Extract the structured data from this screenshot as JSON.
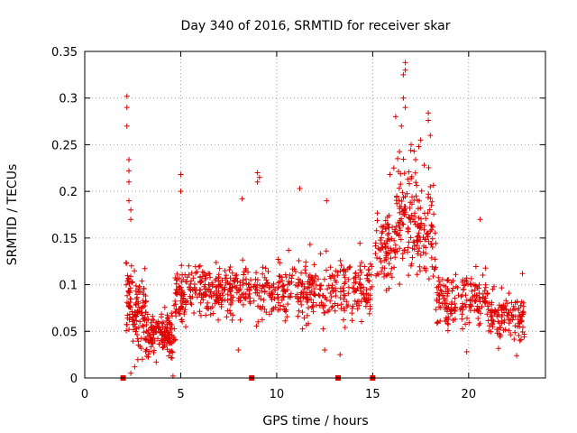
{
  "chart_data": {
    "type": "scatter",
    "title": "Day 340 of 2016, SRMTID for receiver skar",
    "xlabel": "GPS time / hours",
    "ylabel": "SRMTID / TECUs",
    "xlim": [
      0,
      24
    ],
    "ylim": [
      0,
      0.35
    ],
    "x_ticks": [
      0,
      5,
      10,
      15,
      20
    ],
    "x_tick_labels": [
      "0",
      "5",
      "10",
      "15",
      "20"
    ],
    "y_ticks": [
      0,
      0.05,
      0.1,
      0.15,
      0.2,
      0.25,
      0.3,
      0.35
    ],
    "y_tick_labels": [
      "0",
      "0.05",
      "0.1",
      "0.15",
      "0.2",
      "0.25",
      "0.3",
      "0.35"
    ],
    "grid": true,
    "marker_color": "#e00000",
    "marker": "plus",
    "data_gaps_at_zero": [
      2.0,
      8.7,
      13.2,
      15.0
    ],
    "series": [
      {
        "name": "SRMTID",
        "notable_points": [
          {
            "x": 2.2,
            "y": 0.302
          },
          {
            "x": 2.2,
            "y": 0.29
          },
          {
            "x": 2.2,
            "y": 0.27
          },
          {
            "x": 2.3,
            "y": 0.234
          },
          {
            "x": 2.3,
            "y": 0.222
          },
          {
            "x": 2.3,
            "y": 0.21
          },
          {
            "x": 2.3,
            "y": 0.19
          },
          {
            "x": 2.4,
            "y": 0.18
          },
          {
            "x": 2.4,
            "y": 0.17
          },
          {
            "x": 5.0,
            "y": 0.218
          },
          {
            "x": 5.0,
            "y": 0.2
          },
          {
            "x": 9.0,
            "y": 0.22
          },
          {
            "x": 9.1,
            "y": 0.215
          },
          {
            "x": 9.0,
            "y": 0.21
          },
          {
            "x": 8.2,
            "y": 0.192
          },
          {
            "x": 11.2,
            "y": 0.203
          },
          {
            "x": 12.6,
            "y": 0.19
          },
          {
            "x": 16.6,
            "y": 0.3
          },
          {
            "x": 16.7,
            "y": 0.338
          },
          {
            "x": 16.7,
            "y": 0.33
          },
          {
            "x": 16.6,
            "y": 0.325
          },
          {
            "x": 16.7,
            "y": 0.29
          },
          {
            "x": 16.5,
            "y": 0.27
          },
          {
            "x": 16.2,
            "y": 0.28
          },
          {
            "x": 17.9,
            "y": 0.284
          },
          {
            "x": 17.9,
            "y": 0.276
          },
          {
            "x": 18.0,
            "y": 0.26
          },
          {
            "x": 17.5,
            "y": 0.255
          },
          {
            "x": 17.4,
            "y": 0.248
          },
          {
            "x": 17.0,
            "y": 0.25
          },
          {
            "x": 16.3,
            "y": 0.235
          },
          {
            "x": 16.1,
            "y": 0.225
          },
          {
            "x": 15.9,
            "y": 0.218
          },
          {
            "x": 18.0,
            "y": 0.205
          },
          {
            "x": 20.6,
            "y": 0.17
          },
          {
            "x": 2.4,
            "y": 0.005
          },
          {
            "x": 2.6,
            "y": 0.012
          },
          {
            "x": 3.0,
            "y": 0.02
          },
          {
            "x": 4.6,
            "y": 0.002
          },
          {
            "x": 8.0,
            "y": 0.03
          },
          {
            "x": 12.5,
            "y": 0.03
          },
          {
            "x": 13.3,
            "y": 0.025
          },
          {
            "x": 19.9,
            "y": 0.028
          },
          {
            "x": 22.5,
            "y": 0.024
          },
          {
            "x": 22.8,
            "y": 0.112
          },
          {
            "x": 22.8,
            "y": 0.07
          }
        ]
      }
    ]
  }
}
